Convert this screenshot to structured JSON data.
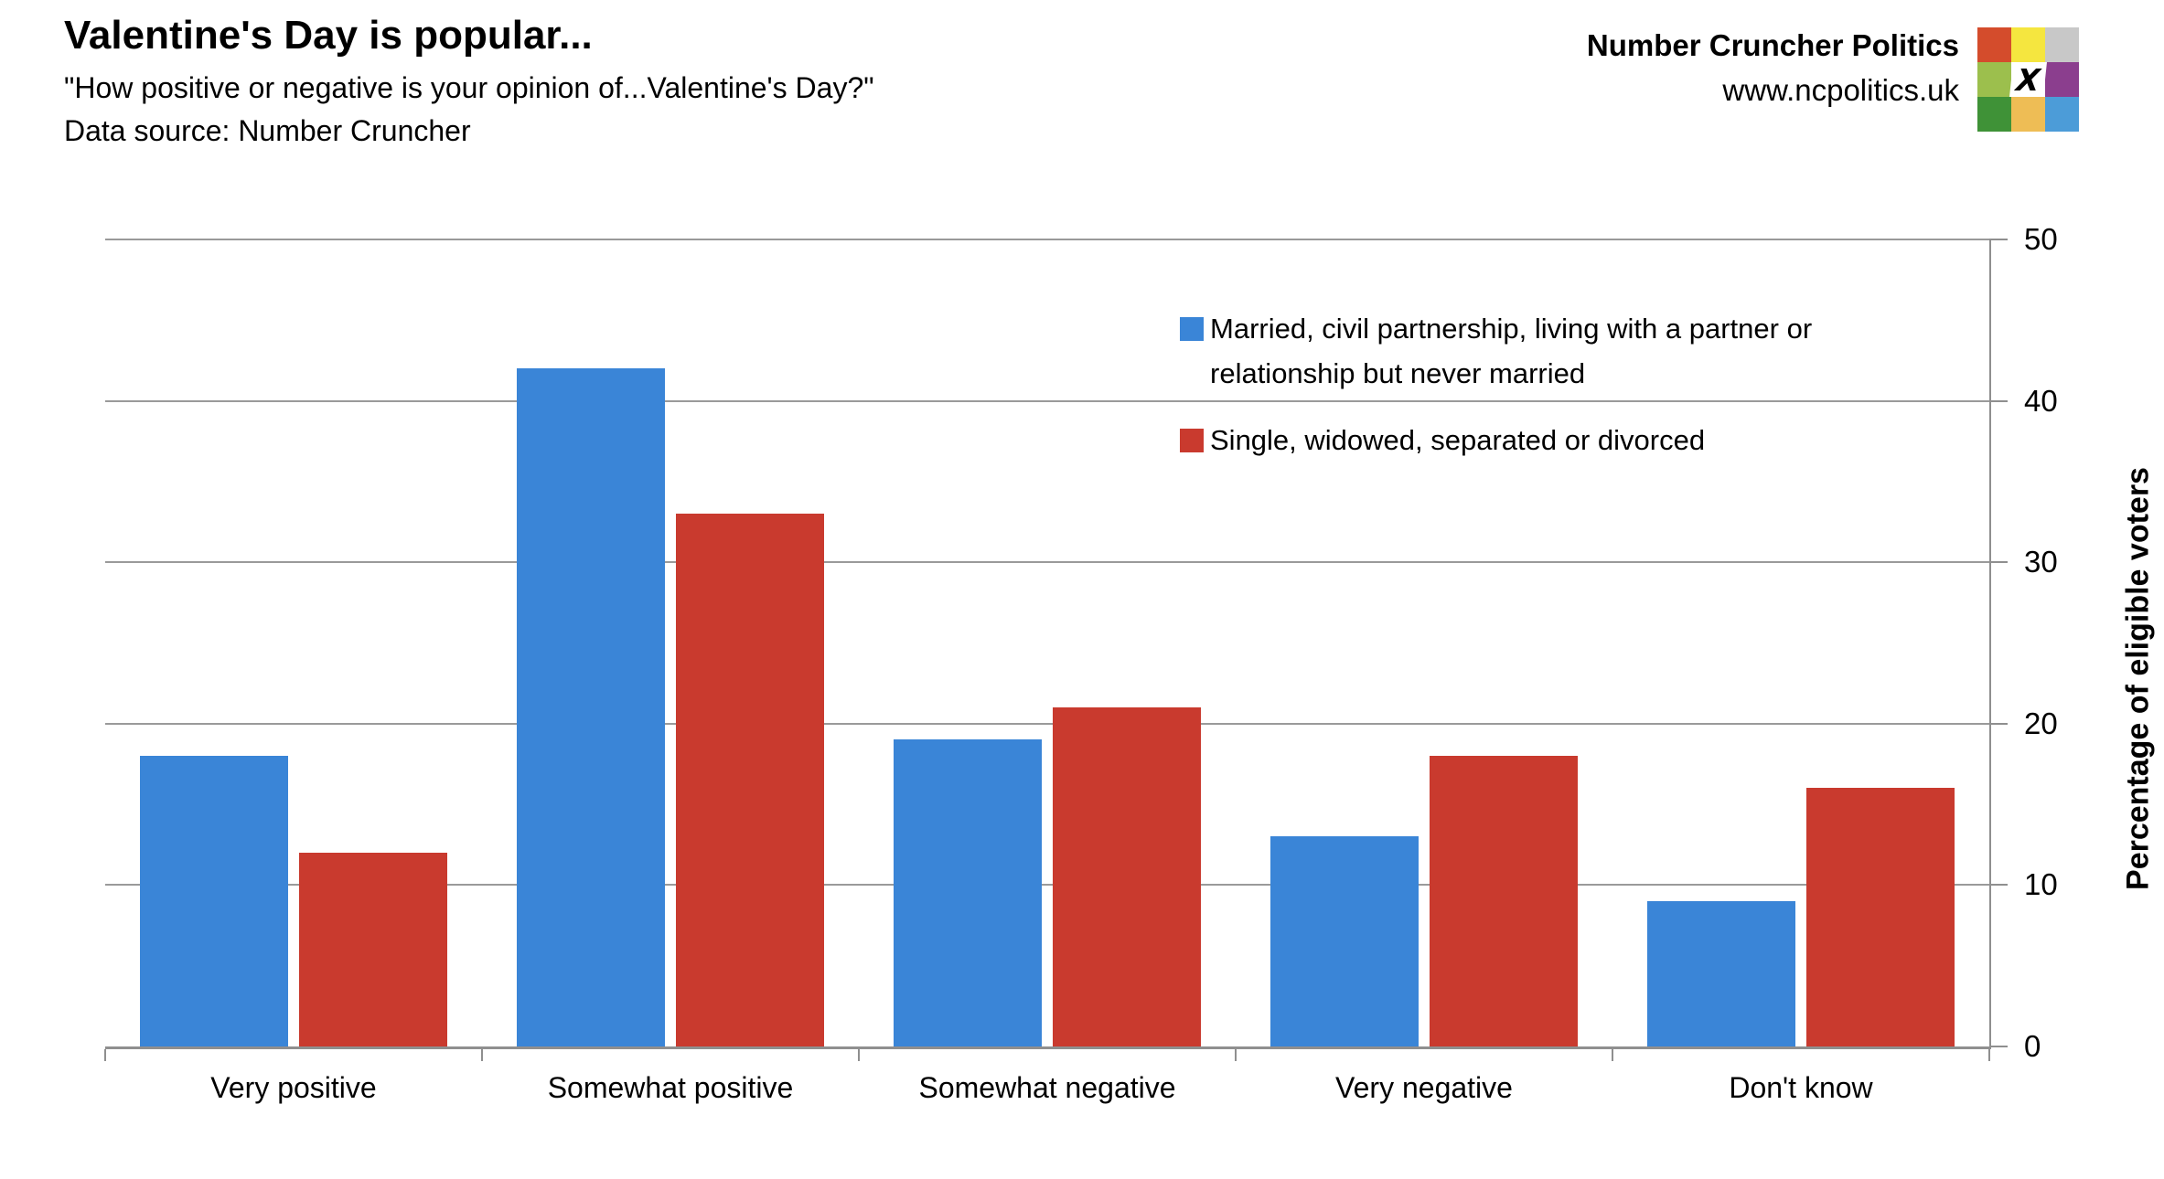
{
  "header": {
    "title": "Valentine's Day is popular...",
    "subtitle": "\"How positive or negative is your opinion of...Valentine's Day?\"",
    "data_source": "Data source: Number Cruncher"
  },
  "brand": {
    "name": "Number Cruncher Politics",
    "website": "www.ncpolitics.uk",
    "logo_x_glyph": "X",
    "logo_grid": [
      [
        "#d44c2c",
        "#f5e63f",
        "#c8c8c8"
      ],
      [
        "#9cbf4d",
        "X",
        "#8b3e8e"
      ],
      [
        "#3f9237",
        "#eebd55",
        "#4c9cd8"
      ]
    ]
  },
  "chart_data": {
    "type": "bar",
    "title": "Valentine's Day is popular...",
    "subtitle": "\"How positive or negative is your opinion of...Valentine's Day?\"",
    "categories": [
      "Very positive",
      "Somewhat positive",
      "Somewhat negative",
      "Very negative",
      "Don't know"
    ],
    "series": [
      {
        "name": "Married, civil partnership, living with a partner or relationship but never married",
        "color": "#3a85d7",
        "values": [
          18,
          42,
          19,
          13,
          9
        ]
      },
      {
        "name": "Single, widowed, separated or divorced",
        "color": "#c93a2e",
        "values": [
          12,
          33,
          21,
          18,
          16
        ]
      }
    ],
    "xlabel": "",
    "ylabel": "Percentage of eligible voters",
    "ylim": [
      0,
      50
    ],
    "yticks": [
      0,
      10,
      20,
      30,
      40,
      50
    ],
    "grid": true,
    "legend_position": "top-right-inside"
  }
}
